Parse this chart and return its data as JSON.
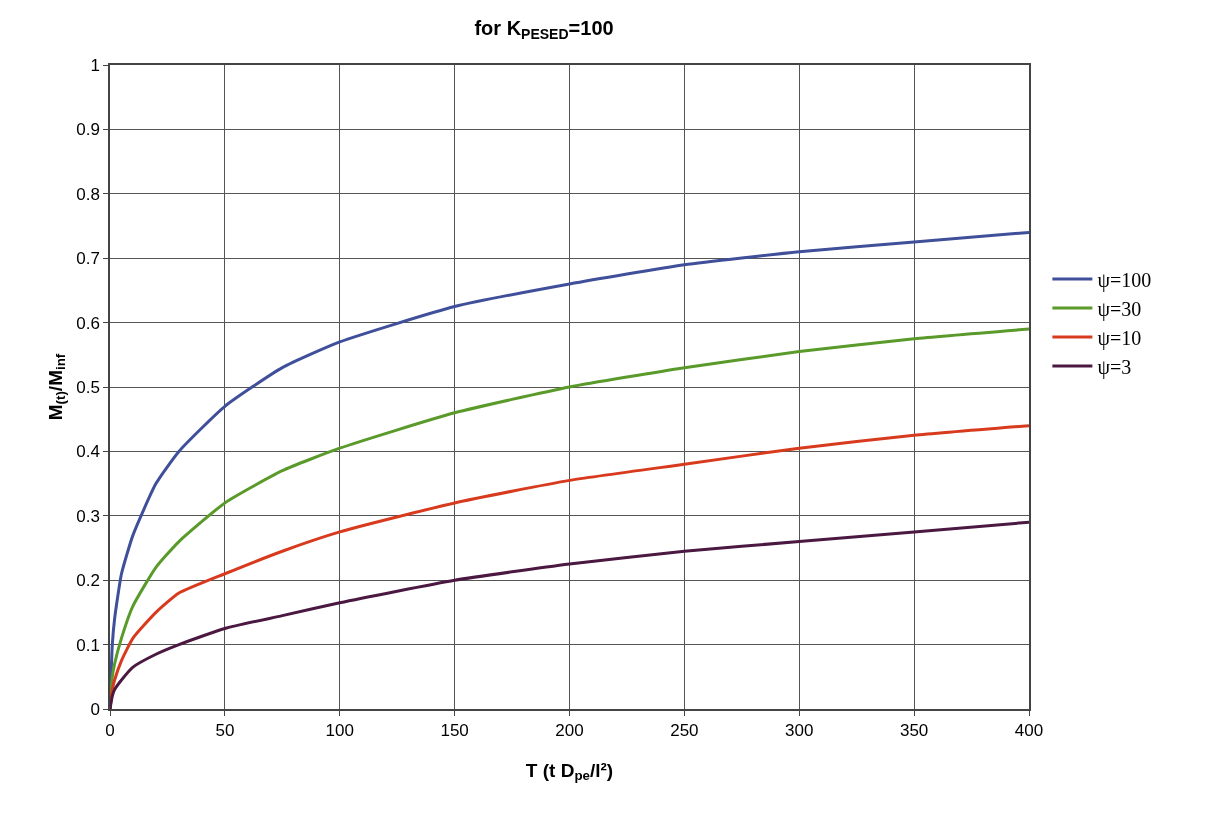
{
  "chart_data": {
    "type": "line",
    "title": "for K$_{PESED}$=100",
    "xlabel": "T (t D$_{pe}$/l²)",
    "ylabel": "M$_{(t)}$/M$_{inf}$",
    "x": [
      0,
      1,
      2,
      5,
      10,
      20,
      30,
      50,
      75,
      100,
      150,
      200,
      250,
      300,
      350,
      400
    ],
    "series": [
      {
        "name": "ψ=100",
        "color": "#3f4f9a",
        "values": [
          0,
          0.1,
          0.14,
          0.21,
          0.27,
          0.35,
          0.4,
          0.47,
          0.53,
          0.57,
          0.625,
          0.66,
          0.69,
          0.71,
          0.725,
          0.74
        ]
      },
      {
        "name": "ψ=30",
        "color": "#5a9a2a",
        "values": [
          0,
          0.05,
          0.07,
          0.11,
          0.16,
          0.22,
          0.26,
          0.32,
          0.37,
          0.405,
          0.46,
          0.5,
          0.53,
          0.555,
          0.575,
          0.59
        ]
      },
      {
        "name": "ψ=10",
        "color": "#d83a1e",
        "values": [
          0,
          0.03,
          0.045,
          0.075,
          0.11,
          0.15,
          0.18,
          0.21,
          0.245,
          0.275,
          0.32,
          0.355,
          0.38,
          0.405,
          0.425,
          0.44
        ]
      },
      {
        "name": "ψ=3",
        "color": "#4a1840",
        "values": [
          0,
          0.02,
          0.03,
          0.045,
          0.065,
          0.085,
          0.1,
          0.125,
          0.145,
          0.165,
          0.2,
          0.225,
          0.245,
          0.26,
          0.275,
          0.29
        ]
      }
    ],
    "xlim": [
      0,
      400
    ],
    "xticks": [
      0,
      50,
      100,
      150,
      200,
      250,
      300,
      350,
      400
    ],
    "ylim": [
      0,
      1
    ],
    "yticks": [
      0,
      0.1,
      0.2,
      0.3,
      0.4,
      0.5,
      0.6,
      0.7,
      0.8,
      0.9,
      1
    ],
    "grid": true,
    "legend": "right",
    "marker": "none",
    "line_style": "solid"
  }
}
